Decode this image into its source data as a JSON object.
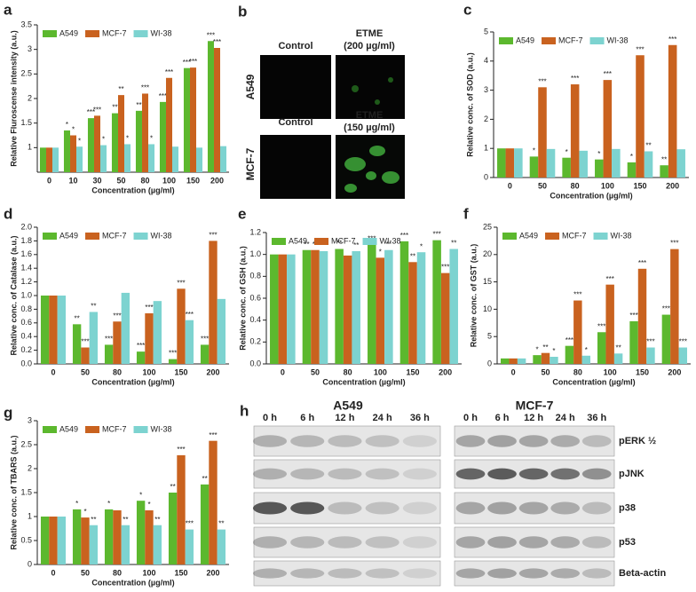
{
  "chart_data": [
    {
      "type": "bar",
      "panel": "a",
      "ylabel": "Relative Fluroscense intensity (a.u.)",
      "xlabel": "Concentration (µg/ml)",
      "categories": [
        "0",
        "10",
        "30",
        "50",
        "80",
        "100",
        "150",
        "200"
      ],
      "ylim": [
        0.5,
        3.5
      ],
      "yticks": [
        1,
        1.5,
        2,
        2.5,
        3,
        3.5
      ],
      "legend": "top-left",
      "series": [
        {
          "name": "A549",
          "color": "#5cb82e",
          "values": [
            1,
            1.35,
            1.6,
            1.7,
            1.75,
            1.93,
            2.62,
            3.17
          ],
          "annotations": [
            null,
            "*",
            "***",
            "**",
            "**",
            "***",
            "***",
            "***"
          ]
        },
        {
          "name": "MCF-7",
          "color": "#c9621f",
          "values": [
            1,
            1.25,
            1.65,
            2.07,
            2.1,
            2.42,
            2.63,
            3.03
          ],
          "annotations": [
            null,
            "*",
            "***",
            "**",
            "***",
            "***",
            "***",
            "***"
          ]
        },
        {
          "name": "WI-38",
          "color": "#7dd3d0",
          "values": [
            1,
            1.02,
            1.05,
            1.07,
            1.07,
            1.02,
            1.0,
            1.03
          ],
          "annotations": [
            null,
            "*",
            "*",
            "*",
            "*",
            null,
            null,
            null
          ]
        }
      ]
    },
    {
      "type": "bar",
      "panel": "c",
      "ylabel": "Relative conc. of SOD (a.u.)",
      "xlabel": "Concentration (µg/ml)",
      "categories": [
        "0",
        "50",
        "80",
        "100",
        "150",
        "200"
      ],
      "ylim": [
        0,
        5
      ],
      "yticks": [
        0,
        1,
        2,
        3,
        4,
        5
      ],
      "legend": "top-left",
      "series": [
        {
          "name": "A549",
          "color": "#5cb82e",
          "values": [
            1.0,
            0.72,
            0.68,
            0.62,
            0.52,
            0.42
          ],
          "annotations": [
            null,
            "*",
            "*",
            "*",
            "*",
            "**"
          ]
        },
        {
          "name": "MCF-7",
          "color": "#c9621f",
          "values": [
            1.0,
            3.1,
            3.2,
            3.35,
            4.2,
            4.55
          ],
          "annotations": [
            null,
            "***",
            "***",
            "***",
            "***",
            "***"
          ]
        },
        {
          "name": "WI-38",
          "color": "#7dd3d0",
          "values": [
            1.0,
            0.98,
            0.92,
            0.98,
            0.9,
            0.97
          ],
          "annotations": [
            null,
            null,
            null,
            null,
            "**",
            null
          ]
        }
      ]
    },
    {
      "type": "bar",
      "panel": "d",
      "ylabel": "Relative conc. of Catalase (a.u.)",
      "xlabel": "Concentration (µg/ml)",
      "categories": [
        "0",
        "50",
        "80",
        "100",
        "150",
        "200"
      ],
      "ylim": [
        0,
        2
      ],
      "yticks": [
        {
          "value": 0,
          "label": "0.0"
        },
        {
          "value": 0.2,
          "label": "0.2"
        },
        {
          "value": 0.4,
          "label": "0.4"
        },
        {
          "value": 0.6,
          "label": "0.6"
        },
        {
          "value": 0.8,
          "label": "0.8"
        },
        {
          "value": 1,
          "label": "1.0"
        },
        {
          "value": 1.2,
          "label": "1.2"
        },
        {
          "value": 1.4,
          "label": "1.4"
        },
        {
          "value": 1.6,
          "label": "1.6"
        },
        {
          "value": 1.8,
          "label": "1.8"
        },
        {
          "value": 2,
          "label": "2.0"
        }
      ],
      "legend": "top-left",
      "series": [
        {
          "name": "A549",
          "color": "#5cb82e",
          "values": [
            1.0,
            0.58,
            0.28,
            0.18,
            0.07,
            0.28
          ],
          "annotations": [
            null,
            "**",
            "***",
            "***",
            "***",
            "***"
          ]
        },
        {
          "name": "MCF-7",
          "color": "#c9621f",
          "values": [
            1.0,
            0.24,
            0.62,
            0.74,
            1.1,
            1.8
          ],
          "annotations": [
            null,
            "***",
            "***",
            "***",
            "***",
            "***"
          ]
        },
        {
          "name": "WI-38",
          "color": "#7dd3d0",
          "values": [
            1.0,
            0.76,
            1.04,
            0.92,
            0.64,
            0.95
          ],
          "annotations": [
            null,
            "**",
            null,
            null,
            "***",
            null
          ]
        }
      ]
    },
    {
      "type": "bar",
      "panel": "e",
      "ylabel": "Relative conc. of GSH (a.u.)",
      "xlabel": "Concentration (µg/ml)",
      "categories": [
        "0",
        "50",
        "80",
        "100",
        "150",
        "200"
      ],
      "ylim": [
        0,
        1.2
      ],
      "yticks": [
        {
          "value": 0,
          "label": "0.0"
        },
        {
          "value": 0.2,
          "label": "0.2"
        },
        {
          "value": 0.4,
          "label": "0.4"
        },
        {
          "value": 0.6,
          "label": "0.6"
        },
        {
          "value": 0.8,
          "label": "0.8"
        },
        {
          "value": 1,
          "label": "1.0"
        },
        {
          "value": 1.2,
          "label": "1.2"
        }
      ],
      "legend": "top-left",
      "series": [
        {
          "name": "A549",
          "color": "#5cb82e",
          "values": [
            1.0,
            1.04,
            1.05,
            1.09,
            1.12,
            1.13
          ],
          "annotations": [
            null,
            "**",
            "**",
            "***",
            "***",
            "***"
          ]
        },
        {
          "name": "MCF-7",
          "color": "#c9621f",
          "values": [
            1.0,
            1.04,
            0.99,
            0.97,
            0.93,
            0.83
          ],
          "annotations": [
            null,
            "**",
            null,
            "*",
            "**",
            "***"
          ]
        },
        {
          "name": "WI-38",
          "color": "#7dd3d0",
          "values": [
            1.0,
            1.03,
            1.03,
            1.04,
            1.02,
            1.05
          ],
          "annotations": [
            null,
            "*",
            "**",
            "**",
            "*",
            "**"
          ]
        }
      ]
    },
    {
      "type": "bar",
      "panel": "f",
      "ylabel": "Relative conc. of GST (a.u.)",
      "xlabel": "Concentration (µg/ml)",
      "categories": [
        "0",
        "50",
        "80",
        "100",
        "150",
        "200"
      ],
      "ylim": [
        0,
        25
      ],
      "yticks": [
        0,
        5,
        10,
        15,
        20,
        25
      ],
      "legend": "top-left",
      "series": [
        {
          "name": "A549",
          "color": "#5cb82e",
          "values": [
            1,
            1.6,
            3.3,
            5.8,
            7.8,
            9.0
          ],
          "annotations": [
            null,
            "*",
            "***",
            "***",
            "***",
            "***"
          ]
        },
        {
          "name": "MCF-7",
          "color": "#c9621f",
          "values": [
            1,
            2.0,
            11.6,
            14.5,
            17.4,
            21.0
          ],
          "annotations": [
            null,
            "**",
            "***",
            "***",
            "***",
            "***"
          ]
        },
        {
          "name": "WI-38",
          "color": "#7dd3d0",
          "values": [
            1,
            1.3,
            1.5,
            1.9,
            3.0,
            3.0
          ],
          "annotations": [
            null,
            "*",
            "*",
            "**",
            "***",
            "***"
          ]
        }
      ]
    },
    {
      "type": "bar",
      "panel": "g",
      "ylabel": "Relative conc. of TBARS (a.u.)",
      "xlabel": "Concentration (µg/ml)",
      "categories": [
        "0",
        "50",
        "80",
        "100",
        "150",
        "200"
      ],
      "ylim": [
        0,
        3
      ],
      "yticks": [
        0,
        0.5,
        1,
        1.5,
        2,
        2.5,
        3
      ],
      "legend": "top-left",
      "series": [
        {
          "name": "A549",
          "color": "#5cb82e",
          "values": [
            1,
            1.15,
            1.15,
            1.33,
            1.5,
            1.67
          ],
          "annotations": [
            null,
            "*",
            "*",
            "*",
            "**",
            "**"
          ]
        },
        {
          "name": "MCF-7",
          "color": "#c9621f",
          "values": [
            1,
            0.98,
            1.13,
            1.13,
            2.28,
            2.58
          ],
          "annotations": [
            null,
            "*",
            null,
            "*",
            "***",
            "***"
          ]
        },
        {
          "name": "WI-38",
          "color": "#7dd3d0",
          "values": [
            1,
            0.82,
            0.82,
            0.82,
            0.73,
            0.73
          ],
          "annotations": [
            null,
            "**",
            "**",
            "**",
            "***",
            "**"
          ]
        }
      ]
    }
  ],
  "panel_b": {
    "label": "b",
    "col1": "Control",
    "col2_line1": "ETME",
    "col2_line2": "(200 µg/ml)",
    "row1": "A549",
    "row2": "MCF-7",
    "col3": "Control",
    "col4_line1": "ETME",
    "col4_line2": "(150 µg/ml)"
  },
  "panel_h": {
    "label": "h",
    "left_title": "A549",
    "right_title": "MCF-7",
    "times": [
      "0 h",
      "6 h",
      "12 h",
      "24 h",
      "36 h"
    ],
    "proteins": [
      "pERK ½",
      "pJNK",
      "p38",
      "p53",
      "Beta-actin"
    ]
  }
}
